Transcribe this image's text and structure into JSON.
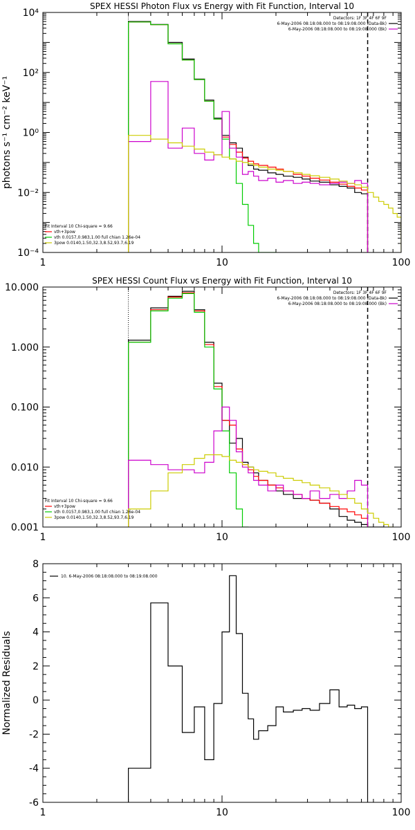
{
  "colors": {
    "black": "#000000",
    "red": "#ff0000",
    "green": "#00cc00",
    "magenta": "#cc00cc",
    "yellow": "#cccc00"
  },
  "chart_data": [
    {
      "type": "line",
      "title": "SPEX HESSI Photon Flux vs Energy with Fit Function, Interval 10",
      "ylabel": "photons s⁻¹ cm⁻² keV⁻¹",
      "xlabel": "",
      "x_scale": "log",
      "y_scale": "log",
      "xlim": [
        1,
        100
      ],
      "ylim": [
        0.0001,
        10000
      ],
      "x_ticks": [
        "1",
        "10",
        "100"
      ],
      "y_ticks": [
        "10⁻⁴",
        "10⁻²",
        "10⁰",
        "10²",
        "10⁴"
      ],
      "y_tick_values": [
        0.0001,
        0.01,
        1,
        100,
        10000
      ],
      "legend_right": {
        "header": "Detectors: 1F 3F 4F 6F 9F",
        "entries": [
          "6-May-2006 08:18:08.000 to 08:19:08.000 (Data-Bk)",
          "6-May-2006 08:18:08.000 to 08:19:08.000 (Bk)"
        ]
      },
      "legend_left": {
        "header": "Fit Interval 10   Chi-square = 9.66",
        "entries": [
          "vth+3pow",
          "vth 0.0157,0.983,1.00  full chian 1.26e-04",
          "3pow 0.0140,1.50,32.3,8.52,93.7,6.19"
        ]
      },
      "vlines": [
        3,
        65
      ],
      "series": [
        {
          "name": "Data-Bk",
          "edges": [
            3,
            4,
            5,
            6,
            7,
            8,
            9,
            10,
            11,
            12,
            13,
            14,
            15,
            16,
            18,
            20,
            22,
            25,
            28,
            31,
            35,
            40,
            45,
            50,
            55,
            60,
            65
          ],
          "values": [
            5000,
            4000,
            1000,
            280,
            60,
            12,
            3,
            0.8,
            0.45,
            0.3,
            0.15,
            0.08,
            0.06,
            0.055,
            0.045,
            0.04,
            0.035,
            0.032,
            0.028,
            0.024,
            0.022,
            0.018,
            0.016,
            0.014,
            0.01,
            0.009
          ]
        },
        {
          "name": "vth+3pow",
          "edges": [
            3,
            4,
            5,
            6,
            7,
            8,
            9,
            10,
            11,
            12,
            13,
            14,
            15,
            16,
            18,
            20,
            22,
            25,
            28,
            31,
            35,
            40,
            45,
            50,
            55,
            60,
            65
          ],
          "values": [
            4800,
            3900,
            900,
            260,
            58,
            11,
            2.8,
            0.7,
            0.4,
            0.22,
            0.14,
            0.11,
            0.09,
            0.08,
            0.07,
            0.06,
            0.05,
            0.04,
            0.035,
            0.03,
            0.026,
            0.022,
            0.019,
            0.016,
            0.014,
            0.012
          ]
        },
        {
          "name": "vth",
          "edges": [
            3,
            4,
            5,
            6,
            7,
            8,
            9,
            10,
            11,
            12,
            13,
            14,
            15,
            16,
            18,
            20
          ],
          "values": [
            4800,
            3900,
            900,
            260,
            58,
            11,
            2.8,
            0.6,
            0.13,
            0.02,
            0.004,
            0.0008,
            0.0002,
            0.0001,
            0.0001
          ]
        },
        {
          "name": "Bk",
          "edges": [
            3,
            4,
            5,
            6,
            7,
            8,
            9,
            10,
            11,
            12,
            13,
            14,
            15,
            16,
            18,
            20,
            22,
            25,
            28,
            31,
            35,
            40,
            45,
            50,
            55,
            60,
            65
          ],
          "values": [
            0.5,
            50,
            0.3,
            1.4,
            0.2,
            0.12,
            0.18,
            5,
            0.3,
            0.15,
            0.04,
            0.05,
            0.035,
            0.025,
            0.03,
            0.022,
            0.025,
            0.02,
            0.022,
            0.02,
            0.018,
            0.02,
            0.022,
            0.02,
            0.025,
            0.02
          ]
        },
        {
          "name": "3pow",
          "edges": [
            3,
            4,
            5,
            6,
            7,
            8,
            9,
            10,
            11,
            12,
            13,
            14,
            15,
            16,
            18,
            20,
            22,
            25,
            28,
            31,
            35,
            40,
            45,
            50,
            55,
            60,
            65,
            70,
            75,
            80,
            85,
            90,
            95,
            100
          ],
          "values": [
            0.8,
            0.6,
            0.45,
            0.35,
            0.28,
            0.22,
            0.18,
            0.15,
            0.13,
            0.11,
            0.1,
            0.09,
            0.08,
            0.07,
            0.06,
            0.055,
            0.05,
            0.045,
            0.04,
            0.036,
            0.032,
            0.028,
            0.024,
            0.02,
            0.018,
            0.015,
            0.01,
            0.007,
            0.005,
            0.004,
            0.003,
            0.002,
            0.0015
          ]
        }
      ]
    },
    {
      "type": "line",
      "title": "SPEX HESSI Count Flux vs Energy with Fit Function, Interval 10",
      "ylabel": "",
      "xlabel": "",
      "x_scale": "log",
      "y_scale": "log",
      "xlim": [
        1,
        100
      ],
      "ylim": [
        0.001,
        10
      ],
      "x_ticks": [
        "1",
        "10",
        "100"
      ],
      "y_ticks": [
        "0.001",
        "0.010",
        "0.100",
        "1.000",
        "10.000"
      ],
      "y_tick_values": [
        0.001,
        0.01,
        0.1,
        1,
        10
      ],
      "legend_right": {
        "header": "Detectors: 1F 3F 4F 6F 9F",
        "entries": [
          "6-May-2006 08:18:08.000 to 08:19:08.000 (Data-Bk)",
          "6-May-2006 08:18:08.000 to 08:19:08.000 (Bk)"
        ]
      },
      "legend_left": {
        "header": "Fit Interval 10   Chi-square = 9.66",
        "entries": [
          "vth+3pow",
          "vth 0.0157,0.983,1.00  full chian 1.26e-04",
          "3pow 0.0140,1.50,32.3,8.52,93.7,6.19"
        ]
      },
      "vlines": [
        3,
        65
      ],
      "series": [
        {
          "name": "Data-Bk",
          "edges": [
            3,
            4,
            5,
            6,
            7,
            8,
            9,
            10,
            11,
            12,
            13,
            14,
            15,
            16,
            18,
            20,
            22,
            25,
            28,
            31,
            35,
            40,
            45,
            50,
            55,
            60,
            65,
            70,
            80
          ],
          "values": [
            1.3,
            4.5,
            7,
            8.5,
            4.2,
            1.2,
            0.25,
            0.06,
            0.025,
            0.03,
            0.012,
            0.01,
            0.008,
            0.006,
            0.005,
            0.004,
            0.0035,
            0.003,
            0.003,
            0.0028,
            0.0025,
            0.002,
            0.0015,
            0.0013,
            0.0012,
            0.0011,
            0.001,
            0.001
          ]
        },
        {
          "name": "vth+3pow",
          "edges": [
            3,
            4,
            5,
            6,
            7,
            8,
            9,
            10,
            11,
            12,
            13,
            14,
            15,
            16,
            18,
            20,
            22,
            25,
            28,
            31,
            35,
            40,
            45,
            50,
            55,
            60,
            65
          ],
          "values": [
            1.2,
            4.2,
            6.8,
            8,
            4,
            1.1,
            0.22,
            0.06,
            0.05,
            0.02,
            0.011,
            0.009,
            0.007,
            0.006,
            0.005,
            0.0045,
            0.004,
            0.0035,
            0.003,
            0.0028,
            0.0025,
            0.0022,
            0.002,
            0.0018,
            0.0016,
            0.0014
          ]
        },
        {
          "name": "vth",
          "edges": [
            3,
            4,
            5,
            6,
            7,
            8,
            9,
            10,
            11,
            12,
            13,
            14,
            15
          ],
          "values": [
            1.2,
            4,
            6.5,
            7.8,
            3.8,
            1,
            0.2,
            0.04,
            0.008,
            0.002,
            0.001,
            0.0005
          ]
        },
        {
          "name": "Bk",
          "edges": [
            3,
            4,
            5,
            6,
            7,
            8,
            9,
            10,
            11,
            12,
            13,
            14,
            15,
            16,
            18,
            20,
            22,
            25,
            28,
            31,
            35,
            40,
            45,
            50,
            55,
            60,
            65
          ],
          "values": [
            0.013,
            0.011,
            0.009,
            0.009,
            0.008,
            0.012,
            0.04,
            0.1,
            0.06,
            0.018,
            0.01,
            0.008,
            0.006,
            0.005,
            0.004,
            0.005,
            0.004,
            0.0035,
            0.003,
            0.004,
            0.003,
            0.0035,
            0.003,
            0.004,
            0.006,
            0.005
          ]
        },
        {
          "name": "3pow",
          "edges": [
            3,
            4,
            5,
            6,
            7,
            8,
            9,
            10,
            11,
            12,
            13,
            14,
            15,
            16,
            18,
            20,
            22,
            25,
            28,
            31,
            35,
            40,
            45,
            50,
            55,
            60,
            65,
            70,
            75,
            80,
            85,
            90
          ],
          "values": [
            0.002,
            0.004,
            0.008,
            0.011,
            0.014,
            0.016,
            0.016,
            0.015,
            0.013,
            0.012,
            0.011,
            0.01,
            0.009,
            0.0085,
            0.008,
            0.007,
            0.0065,
            0.006,
            0.0055,
            0.005,
            0.0045,
            0.004,
            0.0035,
            0.003,
            0.0025,
            0.002,
            0.0017,
            0.0014,
            0.0012,
            0.0011,
            0.001
          ]
        }
      ]
    },
    {
      "type": "line",
      "title": "",
      "ylabel": "Normalized Residuals",
      "xlabel": "",
      "x_scale": "log",
      "y_scale": "linear",
      "xlim": [
        1,
        100
      ],
      "ylim": [
        -6,
        8
      ],
      "x_ticks": [
        "1",
        "10",
        "100"
      ],
      "y_ticks": [
        "-6",
        "-4",
        "-2",
        "0",
        "2",
        "4",
        "6",
        "8"
      ],
      "y_tick_values": [
        -6,
        -4,
        -2,
        0,
        2,
        4,
        6,
        8
      ],
      "legend_right": null,
      "legend_left": null,
      "legend_top": {
        "entries": [
          "10.  6-May-2006 08:18:08.000 to 08:19:08.000"
        ]
      },
      "vlines": [],
      "series": [
        {
          "name": "10.  6-May-2006 08:18:08.000 to 08:19:08.000",
          "edges": [
            3,
            4,
            5,
            6,
            7,
            8,
            9,
            10,
            11,
            12,
            13,
            14,
            15,
            16,
            18,
            20,
            22,
            25,
            28,
            31,
            35,
            40,
            45,
            50,
            55,
            60,
            65
          ],
          "values": [
            -4,
            5.7,
            2,
            -1.9,
            -0.4,
            -3.5,
            -0.2,
            4,
            7.3,
            3.9,
            0.4,
            -1.1,
            -2.3,
            -1.8,
            -1.5,
            -0.4,
            -0.7,
            -0.6,
            -0.5,
            -0.6,
            -0.2,
            0.6,
            -0.4,
            -0.3,
            -0.5,
            -0.4
          ],
          "start_from_bottom": true
        }
      ]
    }
  ]
}
